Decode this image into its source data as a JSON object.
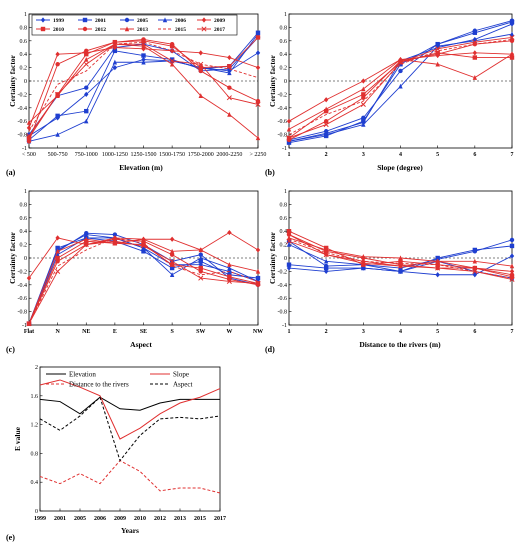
{
  "legend_years": [
    "1999",
    "2001",
    "2005",
    "2006",
    "2009",
    "2010",
    "2012",
    "2013",
    "2015",
    "2017"
  ],
  "colors": {
    "1999": "#1f3fd0",
    "2001": "#1f3fd0",
    "2005": "#1f3fd0",
    "2006": "#1f3fd0",
    "2009": "#e03030",
    "2010": "#e03030",
    "2012": "#e03030",
    "2013": "#e03030",
    "2015": "#e03030",
    "2017": "#e03030",
    "blue": "#1f3fd0",
    "red": "#e03030",
    "black": "#000000"
  },
  "chart_data": [
    {
      "type": "line",
      "panel_label": "(a)",
      "xlabel": "Elevation (m)",
      "ylabel": "Certainty factor",
      "categories": [
        "< 500",
        "500-750",
        "750-1000",
        "1000-1250",
        "1250-1500",
        "1500-1750",
        "1750-2000",
        "2000-2250",
        "> 2250"
      ],
      "ylim": [
        -1,
        1
      ],
      "yticks": [
        "-1",
        "-0.8",
        "-0.6",
        "-0.4",
        "-0.2",
        "0",
        "0.2",
        "0.4",
        "0.6",
        "0.8",
        "1"
      ],
      "series": [
        {
          "name": "1999",
          "values": [
            -0.82,
            -0.55,
            -0.2,
            0.2,
            0.32,
            0.3,
            0.2,
            0.15,
            0.42
          ]
        },
        {
          "name": "2001",
          "values": [
            -0.88,
            -0.52,
            -0.45,
            0.45,
            0.38,
            0.32,
            0.18,
            0.22,
            0.72
          ]
        },
        {
          "name": "2005",
          "values": [
            -0.8,
            -0.22,
            -0.1,
            0.5,
            0.55,
            0.45,
            0.15,
            0.18,
            0.65
          ]
        },
        {
          "name": "2006",
          "values": [
            -0.9,
            -0.8,
            -0.6,
            0.28,
            0.28,
            0.3,
            0.2,
            0.12,
            0.7
          ]
        },
        {
          "name": "2009",
          "values": [
            -0.7,
            0.4,
            0.42,
            0.5,
            0.48,
            0.45,
            0.42,
            0.35,
            0.2
          ]
        },
        {
          "name": "2010",
          "values": [
            -0.85,
            -0.2,
            0.4,
            0.58,
            0.6,
            0.52,
            0.2,
            0.22,
            0.65
          ]
        },
        {
          "name": "2012",
          "values": [
            -0.9,
            0.25,
            0.45,
            0.58,
            0.62,
            0.55,
            0.15,
            -0.1,
            -0.3
          ]
        },
        {
          "name": "2013",
          "values": [
            -0.62,
            -0.22,
            0.32,
            0.55,
            0.52,
            0.25,
            -0.22,
            -0.5,
            -0.85
          ]
        },
        {
          "name": "2015",
          "values": [
            -0.75,
            -0.05,
            0.15,
            0.55,
            0.58,
            0.45,
            0.25,
            0.18,
            0.05
          ]
        },
        {
          "name": "2017",
          "values": [
            -0.82,
            -0.2,
            0.25,
            0.55,
            0.55,
            0.3,
            0.25,
            -0.25,
            -0.35
          ]
        }
      ]
    },
    {
      "type": "line",
      "panel_label": "(b)",
      "xlabel": "Slope (degree)",
      "ylabel": "Certainty factor",
      "categories": [
        "1",
        "2",
        "3",
        "4",
        "5",
        "6",
        "7"
      ],
      "ylim": [
        -1,
        1
      ],
      "yticks": [
        "-1",
        "-0.8",
        "-0.6",
        "-0.4",
        "-0.2",
        "0",
        "0.2",
        "0.4",
        "0.6",
        "0.8",
        "1"
      ],
      "series": [
        {
          "name": "1999",
          "values": [
            -0.9,
            -0.78,
            -0.62,
            0.3,
            0.5,
            0.62,
            0.85
          ]
        },
        {
          "name": "2001",
          "values": [
            -0.92,
            -0.82,
            -0.6,
            0.25,
            0.55,
            0.72,
            0.88
          ]
        },
        {
          "name": "2005",
          "values": [
            -0.88,
            -0.75,
            -0.55,
            0.15,
            0.55,
            0.75,
            0.9
          ]
        },
        {
          "name": "2006",
          "values": [
            -0.9,
            -0.8,
            -0.65,
            -0.08,
            0.52,
            0.6,
            0.7
          ]
        },
        {
          "name": "2009",
          "values": [
            -0.6,
            -0.28,
            0,
            0.32,
            0.38,
            0.42,
            0.4
          ]
        },
        {
          "name": "2010",
          "values": [
            -0.85,
            -0.45,
            -0.2,
            0.28,
            0.42,
            0.35,
            0.35
          ]
        },
        {
          "name": "2012",
          "values": [
            -0.88,
            -0.6,
            -0.25,
            0.3,
            0.4,
            0.55,
            0.6
          ]
        },
        {
          "name": "2013",
          "values": [
            -0.72,
            -0.42,
            -0.12,
            0.32,
            0.25,
            0.05,
            0.4
          ]
        },
        {
          "name": "2015",
          "values": [
            -0.8,
            -0.5,
            -0.3,
            0.25,
            0.45,
            0.55,
            0.62
          ]
        },
        {
          "name": "2017",
          "values": [
            -0.85,
            -0.65,
            -0.35,
            0.28,
            0.48,
            0.58,
            0.65
          ]
        }
      ]
    },
    {
      "type": "line",
      "panel_label": "(c)",
      "xlabel": "Aspect",
      "ylabel": "Certainty factor",
      "categories": [
        "Flat",
        "N",
        "NE",
        "E",
        "SE",
        "S",
        "SW",
        "W",
        "NW"
      ],
      "ylim": [
        -1,
        1
      ],
      "yticks": [
        "-1",
        "-0.8",
        "-0.6",
        "-0.4",
        "-0.2",
        "0",
        "0.2",
        "0.4",
        "0.6",
        "0.8",
        "1"
      ],
      "series": [
        {
          "name": "1999",
          "values": [
            -0.98,
            0.12,
            0.35,
            0.3,
            0.15,
            -0.1,
            -0.1,
            -0.2,
            -0.35
          ]
        },
        {
          "name": "2001",
          "values": [
            -0.98,
            0.15,
            0.3,
            0.25,
            0.1,
            -0.15,
            -0.05,
            -0.25,
            -0.3
          ]
        },
        {
          "name": "2005",
          "values": [
            -0.98,
            0.1,
            0.37,
            0.35,
            0.2,
            -0.05,
            0.05,
            -0.3,
            -0.4
          ]
        },
        {
          "name": "2006",
          "values": [
            -0.98,
            0.05,
            0.3,
            0.3,
            0.15,
            -0.25,
            0,
            -0.15,
            -0.35
          ]
        },
        {
          "name": "2009",
          "values": [
            -0.3,
            0.3,
            0.2,
            0.3,
            0.28,
            0.28,
            0.12,
            0.38,
            0.12
          ]
        },
        {
          "name": "2010",
          "values": [
            -0.98,
            0,
            0.25,
            0.22,
            0.2,
            -0.1,
            -0.15,
            -0.28,
            -0.38
          ]
        },
        {
          "name": "2012",
          "values": [
            -0.98,
            -0.05,
            0.2,
            0.28,
            0.25,
            0.05,
            -0.2,
            -0.32,
            -0.4
          ]
        },
        {
          "name": "2013",
          "values": [
            -0.98,
            0.1,
            0.28,
            0.22,
            0.28,
            0.1,
            0.12,
            -0.1,
            -0.2
          ]
        },
        {
          "name": "2015",
          "values": [
            -0.98,
            -0.12,
            0.12,
            0.3,
            0.22,
            -0.12,
            -0.25,
            -0.2,
            -0.35
          ]
        },
        {
          "name": "2017",
          "values": [
            -0.98,
            -0.2,
            0.2,
            0.25,
            0.18,
            -0.05,
            -0.3,
            -0.35,
            -0.38
          ]
        }
      ]
    },
    {
      "type": "line",
      "panel_label": "(d)",
      "xlabel": "Distance to the rivers (m)",
      "ylabel": "Certainty factor",
      "categories": [
        "1",
        "2",
        "3",
        "4",
        "5",
        "6",
        "7"
      ],
      "ylim": [
        -1,
        1
      ],
      "yticks": [
        "-1",
        "-0.8",
        "-0.6",
        "-0.4",
        "-0.2",
        "0",
        "0.2",
        "0.4",
        "0.6",
        "0.8",
        "1"
      ],
      "series": [
        {
          "name": "1999",
          "values": [
            -0.15,
            -0.2,
            -0.15,
            -0.2,
            -0.25,
            -0.25,
            0.03
          ]
        },
        {
          "name": "2001",
          "values": [
            -0.1,
            -0.15,
            -0.15,
            -0.2,
            0,
            0.12,
            0.18
          ]
        },
        {
          "name": "2005",
          "values": [
            0.25,
            -0.12,
            -0.1,
            -0.15,
            -0.02,
            0.1,
            0.27
          ]
        },
        {
          "name": "2006",
          "values": [
            0.2,
            -0.05,
            -0.1,
            -0.2,
            -0.05,
            -0.2,
            -0.3
          ]
        },
        {
          "name": "2009",
          "values": [
            0.35,
            0.05,
            -0.05,
            -0.12,
            -0.05,
            -0.15,
            -0.2
          ]
        },
        {
          "name": "2010",
          "values": [
            0.4,
            0.15,
            -0.1,
            -0.05,
            -0.1,
            -0.15,
            -0.28
          ]
        },
        {
          "name": "2012",
          "values": [
            0.35,
            0.1,
            0,
            -0.1,
            -0.15,
            -0.15,
            -0.25
          ]
        },
        {
          "name": "2013",
          "values": [
            0.3,
            0.12,
            0.02,
            0,
            -0.05,
            -0.05,
            -0.12
          ]
        },
        {
          "name": "2015",
          "values": [
            0.28,
            0.08,
            -0.05,
            -0.08,
            -0.1,
            -0.2,
            -0.3
          ]
        },
        {
          "name": "2017",
          "values": [
            0.25,
            0.05,
            -0.08,
            -0.12,
            -0.15,
            -0.2,
            -0.32
          ]
        }
      ]
    },
    {
      "type": "line",
      "panel_label": "(e)",
      "xlabel": "Years",
      "ylabel": "E value",
      "categories": [
        "1999",
        "2001",
        "2005",
        "2006",
        "2009",
        "2010",
        "2012",
        "2013",
        "2015",
        "2017"
      ],
      "ylim": [
        0,
        2
      ],
      "yticks": [
        "0",
        "0.4",
        "0.8",
        "1.2",
        "1.6",
        "2"
      ],
      "series": [
        {
          "name": "Elevation",
          "values": [
            1.55,
            1.52,
            1.35,
            1.58,
            1.42,
            1.4,
            1.5,
            1.55,
            1.55,
            1.55
          ]
        },
        {
          "name": "Slope",
          "values": [
            1.75,
            1.82,
            1.72,
            1.6,
            1.0,
            1.15,
            1.35,
            1.5,
            1.58,
            1.7
          ]
        },
        {
          "name": "Distance to the rivers",
          "values": [
            0.48,
            0.38,
            0.52,
            0.38,
            0.7,
            0.55,
            0.28,
            0.32,
            0.32,
            0.25
          ]
        },
        {
          "name": "Aspect",
          "values": [
            1.28,
            1.12,
            1.32,
            1.58,
            0.7,
            1.05,
            1.28,
            1.3,
            1.28,
            1.32
          ]
        }
      ]
    }
  ]
}
